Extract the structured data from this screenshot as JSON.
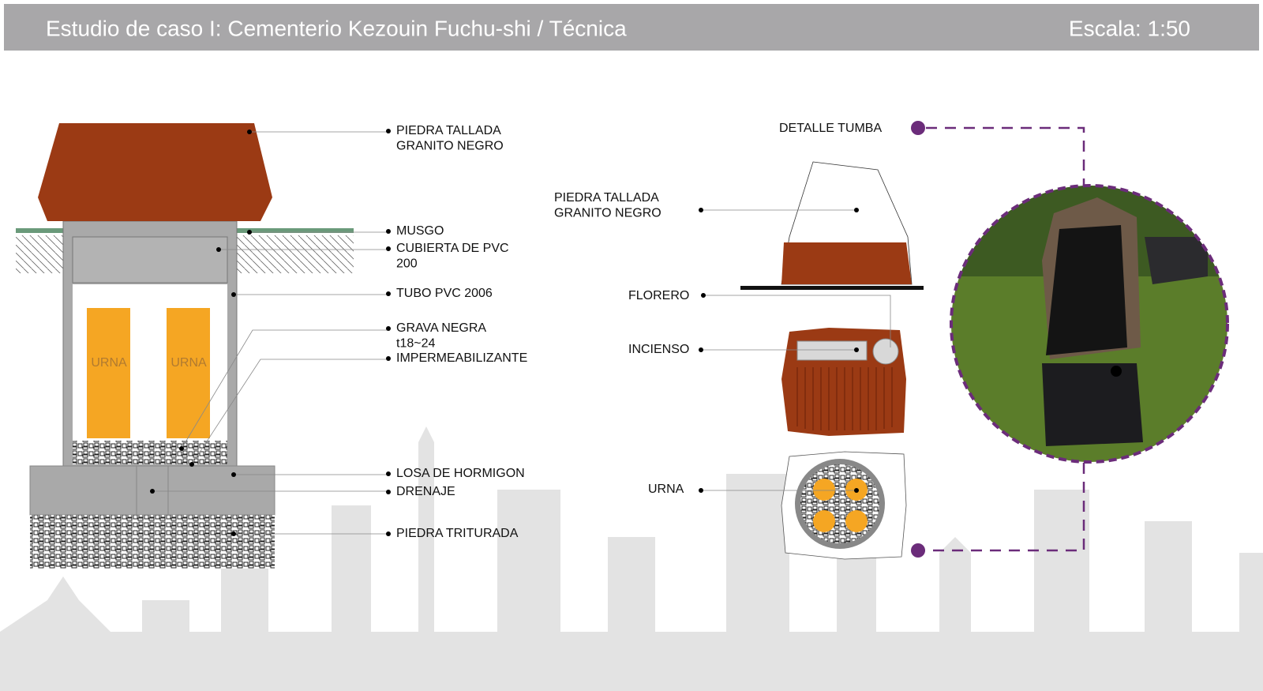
{
  "header": {
    "title": "Estudio de caso I: Cementerio Kezouin Fuchu-shi / Técnica",
    "scale": "Escala: 1:50"
  },
  "section": {
    "labels": [
      {
        "lines": [
          "PIEDRA TALLADA",
          "GRANITO NEGRO"
        ]
      },
      {
        "lines": [
          "MUSGO"
        ]
      },
      {
        "lines": [
          "CUBIERTA DE  PVC",
          "200"
        ]
      },
      {
        "lines": [
          "TUBO PVC 2006"
        ]
      },
      {
        "lines": [
          "GRAVA NEGRA",
          "t18~24"
        ]
      },
      {
        "lines": [
          "IMPERMEABILIZANTE"
        ]
      },
      {
        "lines": [
          "LOSA DE HORMIGON"
        ]
      },
      {
        "lines": [
          "DRENAJE"
        ]
      },
      {
        "lines": [
          "PIEDRA TRITURADA"
        ]
      }
    ],
    "urns": [
      "URNA",
      "URNA"
    ]
  },
  "detail": {
    "title": "DETALLE TUMBA",
    "labels": [
      {
        "lines": [
          "PIEDRA TALLADA",
          "GRANITO NEGRO"
        ]
      },
      {
        "lines": [
          "FLORERO"
        ]
      },
      {
        "lines": [
          "INCIENSO"
        ]
      },
      {
        "lines": [
          "URNA"
        ]
      }
    ]
  }
}
